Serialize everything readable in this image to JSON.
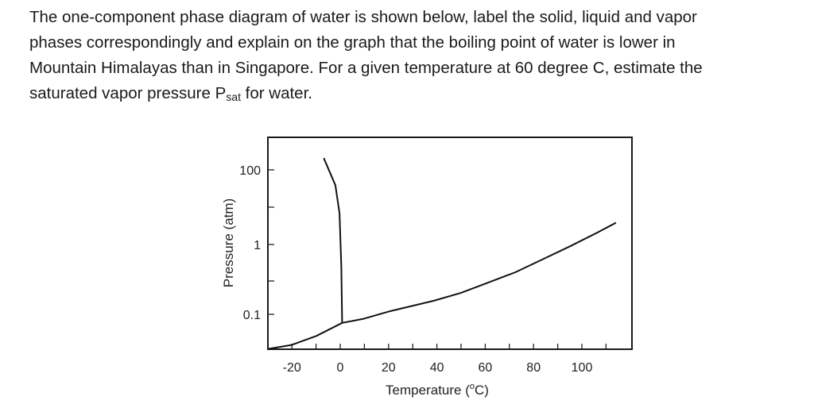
{
  "question": {
    "lines": [
      "The one-component phase diagram of water is shown below, label the solid, liquid and vapor",
      "phases correspondingly and explain on the graph that the boiling point of water is lower in",
      "Mountain Himalayas than in Singapore. For a given temperature at 60 degree C, estimate the"
    ],
    "last_line_prefix": "saturated vapor pressure P",
    "last_line_subscript": "sat",
    "last_line_suffix": " for water."
  },
  "chart_data": {
    "type": "line",
    "title": "",
    "xlabel_prefix": "Temperature (",
    "xlabel_sup": "o",
    "xlabel_suffix": "C)",
    "ylabel": "Pressure (atm)",
    "xlim": [
      -30,
      120
    ],
    "ylim": [
      0.032,
      980
    ],
    "yscale": "log",
    "grid": false,
    "x_ticks": [
      -20,
      0,
      20,
      40,
      60,
      80,
      100
    ],
    "x_tick_labels": [
      "-20",
      "0",
      "20",
      "40",
      "60",
      "80",
      "100"
    ],
    "x_minor_ticks": [
      -20,
      -10,
      0,
      10,
      20,
      30,
      40,
      50,
      60,
      70,
      80,
      90,
      100,
      110
    ],
    "y_ticks": [
      100,
      1,
      0.1
    ],
    "y_tick_labels": [
      "100",
      "1",
      "0.1"
    ],
    "y_minor_ticks": [
      10,
      0.3
    ],
    "line_color": "#111111",
    "series": [
      {
        "x": [
          -29.7,
          -20.1,
          -9.9,
          0.8
        ],
        "y": [
          0.032,
          0.0364,
          0.049,
          0.0754
        ]
      },
      {
        "x": [
          0.8,
          0.45,
          -0.3,
          -2.0,
          -6.8
        ],
        "y": [
          0.0754,
          0.475,
          6.9,
          38.9,
          206
        ]
      },
      {
        "x": [
          0.8,
          9.3,
          20.6,
          38.6,
          49.9,
          61.2,
          72.5,
          83.8,
          95.1,
          106.4,
          114.1
        ],
        "y": [
          0.0754,
          0.0857,
          0.1108,
          0.156,
          0.202,
          0.284,
          0.4,
          0.614,
          0.942,
          2.09,
          3.82
        ]
      }
    ]
  }
}
